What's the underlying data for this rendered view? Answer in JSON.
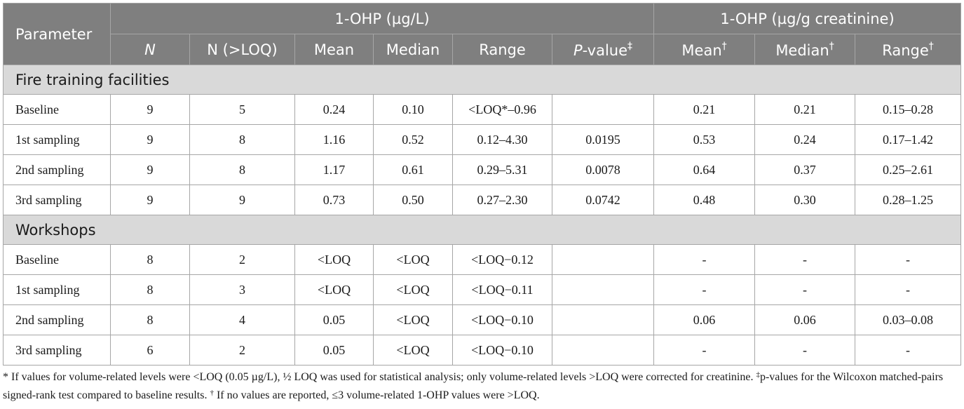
{
  "header": {
    "parameter": "Parameter",
    "group1": "1-OHP (µg/L)",
    "group2": "1-OHP (µg/g creatinine)",
    "n": "N",
    "n_loq": "N (>LOQ)",
    "mean": "Mean",
    "median": "Median",
    "range": "Range",
    "pvalue_italic": "P",
    "pvalue_rest": "-value",
    "pvalue_mark": "‡",
    "dagger": "†"
  },
  "sections": [
    {
      "title": "Fire training facilities",
      "rows": [
        {
          "label": "Baseline",
          "n": "9",
          "n_loq": "5",
          "mean": "0.24",
          "median": "0.10",
          "range": "<LOQ*–0.96",
          "p": "",
          "mean_c": "0.21",
          "median_c": "0.21",
          "range_c": "0.15–0.28"
        },
        {
          "label": "1st sampling",
          "n": "9",
          "n_loq": "8",
          "mean": "1.16",
          "median": "0.52",
          "range": "0.12–4.30",
          "p": "0.0195",
          "mean_c": "0.53",
          "median_c": "0.24",
          "range_c": "0.17–1.42"
        },
        {
          "label": "2nd sampling",
          "n": "9",
          "n_loq": "8",
          "mean": "1.17",
          "median": "0.61",
          "range": "0.29–5.31",
          "p": "0.0078",
          "mean_c": "0.64",
          "median_c": "0.37",
          "range_c": "0.25–2.61"
        },
        {
          "label": "3rd sampling",
          "n": "9",
          "n_loq": "9",
          "mean": "0.73",
          "median": "0.50",
          "range": "0.27–2.30",
          "p": "0.0742",
          "mean_c": "0.48",
          "median_c": "0.30",
          "range_c": "0.28–1.25"
        }
      ]
    },
    {
      "title": "Workshops",
      "rows": [
        {
          "label": "Baseline",
          "n": "8",
          "n_loq": "2",
          "mean": "<LOQ",
          "median": "<LOQ",
          "range": "<LOQ−0.12",
          "p": "",
          "mean_c": "-",
          "median_c": "-",
          "range_c": "-"
        },
        {
          "label": "1st sampling",
          "n": "8",
          "n_loq": "3",
          "mean": "<LOQ",
          "median": "<LOQ",
          "range": "<LOQ−0.11",
          "p": "",
          "mean_c": "-",
          "median_c": "-",
          "range_c": "-"
        },
        {
          "label": "2nd sampling",
          "n": "8",
          "n_loq": "4",
          "mean": "0.05",
          "median": "<LOQ",
          "range": "<LOQ−0.10",
          "p": "",
          "mean_c": "0.06",
          "median_c": "0.06",
          "range_c": "0.03–0.08"
        },
        {
          "label": "3rd sampling",
          "n": "6",
          "n_loq": "2",
          "mean": "0.05",
          "median": "<LOQ",
          "range": "<LOQ−0.10",
          "p": "",
          "mean_c": "-",
          "median_c": "-",
          "range_c": "-"
        }
      ]
    }
  ],
  "footnote": {
    "star": "*",
    "part1": " If values for volume-related levels were <LOQ (0.05 µg/L), ½ LOQ was used for statistical analysis; only volume-related levels >LOQ were corrected for creatinine. ",
    "ddagger": "‡",
    "part2": "p-values for the Wilcoxon matched-pairs signed-rank test compared to baseline results. ",
    "dagger": "†",
    "part3": " If no values are reported, ≤3 volume-related 1-OHP values were >LOQ."
  },
  "colors": {
    "header_bg": "#7f7f7f",
    "section_bg": "#d9d9d9",
    "border": "#a6a6a6"
  }
}
